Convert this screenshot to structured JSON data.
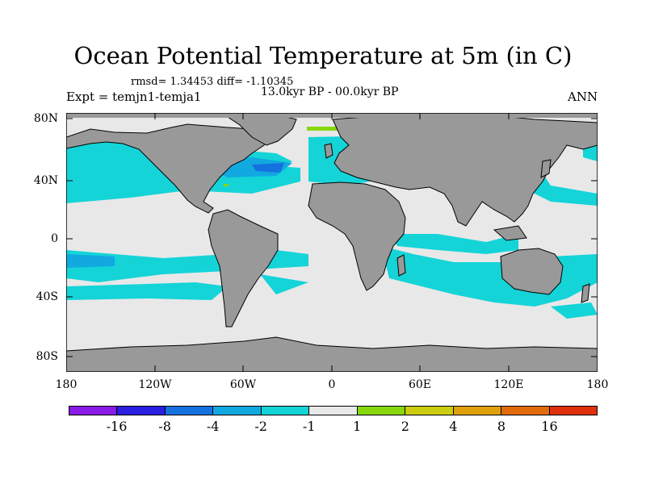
{
  "title": "Ocean Potential Temperature at 5m (in C)",
  "stats": "rmsd= 1.34453 diff= -1.10345",
  "experiment": "Expt = temjn1-temja1",
  "period": "13.0kyr BP - 00.0kyr BP",
  "season": "ANN",
  "lat_labels": [
    "80N",
    "40N",
    "0",
    "40S",
    "80S"
  ],
  "lon_labels": [
    "180",
    "120W",
    "60W",
    "0",
    "60E",
    "120E",
    "180"
  ],
  "colorbar": {
    "labels": [
      "-16",
      "-8",
      "-4",
      "-2",
      "-1",
      "1",
      "2",
      "4",
      "8",
      "16"
    ],
    "colors": [
      "#8a1ae6",
      "#2a1ee0",
      "#1570e0",
      "#12a8e0",
      "#14d4d8",
      "#e8e8e8",
      "#86d80c",
      "#cccc10",
      "#e0a00c",
      "#e06a0c",
      "#e0300c"
    ]
  },
  "colors": {
    "land": "#999999",
    "ocean_neutral": "#e8e8e8",
    "cool_cyan": "#14d4d8",
    "cool_light_blue": "#12a8e0",
    "cool_blue": "#1570e0"
  }
}
